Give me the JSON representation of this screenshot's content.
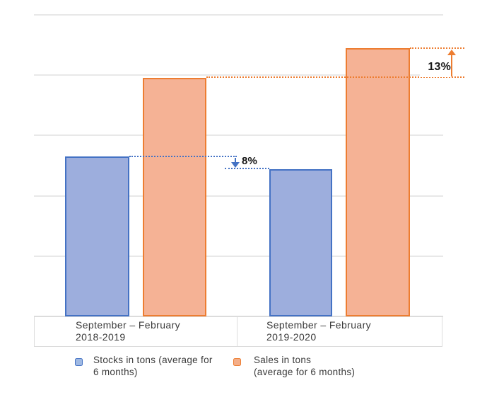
{
  "chart_data": {
    "type": "bar",
    "title": "",
    "categories": [
      "September – February 2018-2019",
      "September – February 2019-2020"
    ],
    "series": [
      {
        "name": "Stocks in tons (average for 6 months)",
        "values": [
          2.65,
          2.44
        ],
        "fill": "#9daedd",
        "border": "#4472c4"
      },
      {
        "name": "Sales in tons (average for 6 months)",
        "values": [
          3.95,
          4.45
        ],
        "fill": "#f5b295",
        "border": "#ed7d31"
      }
    ],
    "xlabel": "",
    "ylabel": "",
    "ylim": [
      0,
      5
    ],
    "gridlines": "horizontal, unlabeled, every 1 unit",
    "legend_position": "bottom",
    "annotations": [
      {
        "label": "8%",
        "series": "Stocks in tons",
        "direction": "down",
        "meaning": "stocks decreased ~8% from 2018-2019 to 2019-2020",
        "color": "#4472c4"
      },
      {
        "label": "13%",
        "series": "Sales in tons",
        "direction": "up",
        "meaning": "sales increased ~13% from 2018-2019 to 2019-2020",
        "color": "#ed7d31"
      }
    ]
  },
  "axis": {
    "categories": [
      {
        "line1": "September – February",
        "line2": "2018-2019"
      },
      {
        "line1": "September – February",
        "line2": "2019-2020"
      }
    ]
  },
  "legend": {
    "items": [
      {
        "line1": "Stocks in tons (average for",
        "line2": "6 months)",
        "color": "#9fb9e3",
        "border": "#4472c4"
      },
      {
        "line1": "Sales in tons",
        "line2": "(average for 6 months)",
        "color": "#f4ae88",
        "border": "#ed7d31"
      }
    ]
  },
  "colors": {
    "stocks_fill": "#9daedd",
    "stocks_border": "#4472c4",
    "sales_fill": "#f5b295",
    "sales_border": "#ed7d31",
    "gridline": "#e8e8e8",
    "box_border": "#dcdcdc",
    "annotation_text": "#171717",
    "background": "#ffffff"
  }
}
